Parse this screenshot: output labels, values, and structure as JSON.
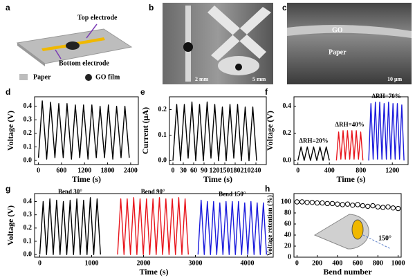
{
  "panels": {
    "a": {
      "label": "a",
      "top_electrode": "Top electrode",
      "bottom_electrode": "Bottom electrode",
      "paper": "Paper",
      "go_film": "GO film"
    },
    "b": {
      "label": "b",
      "scale_left": "2 mm",
      "scale_right": "5 mm"
    },
    "c": {
      "label": "c",
      "go": "GO",
      "paper": "Paper",
      "scale": "10 μm"
    }
  },
  "chart_data": [
    {
      "type": "line",
      "label": "d",
      "xlabel": "Time (s)",
      "ylabel": "Voltage (V)",
      "xlim": [
        -100,
        2600
      ],
      "xticks": [
        0,
        600,
        1200,
        1800,
        2400
      ],
      "ylim": [
        -0.03,
        0.47
      ],
      "yticks": [
        {
          "value": 0,
          "label": "0.0"
        },
        0.1,
        0.2,
        0.3,
        0.4
      ],
      "series": [
        {
          "color": "#000000",
          "x": [
            0,
            100,
            215,
            315,
            430,
            530,
            645,
            745,
            860,
            960,
            1075,
            1175,
            1290,
            1390,
            1505,
            1605,
            1720,
            1820,
            1935,
            2035,
            2150,
            2250,
            2365
          ],
          "values": [
            0.02,
            0.44,
            0.01,
            0.43,
            0.02,
            0.42,
            0.02,
            0.42,
            0.01,
            0.41,
            0.02,
            0.41,
            0.01,
            0.41,
            0.02,
            0.4,
            0.02,
            0.41,
            0.01,
            0.4,
            0.02,
            0.4,
            0.02
          ]
        }
      ]
    },
    {
      "type": "line",
      "label": "e",
      "xlabel": "Time (s)",
      "ylabel": "Current (μA)",
      "xlim": [
        -10,
        270
      ],
      "xticks": [
        0,
        30,
        60,
        90,
        120,
        150,
        180,
        210,
        240
      ],
      "ylim": [
        -0.015,
        0.25
      ],
      "yticks": [
        {
          "value": 0,
          "label": "0.0"
        },
        0.1,
        0.2
      ],
      "series": [
        {
          "color": "#000000",
          "x": [
            0,
            11,
            22,
            33,
            44,
            55,
            66,
            77,
            88,
            99,
            110,
            121,
            132,
            143,
            154,
            165,
            176,
            187,
            198,
            209,
            220,
            231,
            242
          ],
          "values": [
            0.0,
            0.22,
            0.0,
            0.22,
            0.01,
            0.23,
            0.0,
            0.22,
            0.0,
            0.23,
            0.01,
            0.22,
            0.0,
            0.21,
            0.0,
            0.22,
            0.01,
            0.22,
            0.0,
            0.21,
            0.0,
            0.21,
            0.0
          ]
        }
      ]
    },
    {
      "type": "line",
      "label": "f",
      "xlabel": "Time (s)",
      "ylabel": "Voltage (V)",
      "xlim": [
        -50,
        1400
      ],
      "xticks": [
        0,
        400,
        800,
        1200
      ],
      "ylim": [
        -0.03,
        0.47
      ],
      "yticks": [
        {
          "value": 0,
          "label": "0.0"
        },
        0.2,
        0.4
      ],
      "series": [
        {
          "name": "ΔRH=20%",
          "color": "#000000",
          "x": [
            0,
            40,
            80,
            120,
            160,
            200,
            240,
            280,
            320,
            360,
            400
          ],
          "values": [
            0.0,
            0.1,
            0.0,
            0.1,
            0.0,
            0.1,
            0.0,
            0.1,
            0.0,
            0.1,
            0.0
          ]
        },
        {
          "name": "ΔRH=40%",
          "color": "#e8141b",
          "x": [
            490,
            518,
            546,
            574,
            602,
            630,
            658,
            686,
            714,
            742,
            770,
            798,
            826
          ],
          "values": [
            0.0,
            0.21,
            0.01,
            0.22,
            0.01,
            0.22,
            0.01,
            0.22,
            0.01,
            0.22,
            0.01,
            0.21,
            0.0
          ]
        },
        {
          "name": "ΔRH=70%",
          "color": "#1a1adc",
          "x": [
            900,
            928,
            956,
            984,
            1012,
            1040,
            1068,
            1096,
            1124,
            1152,
            1180,
            1208,
            1236,
            1264,
            1292,
            1320,
            1348
          ],
          "values": [
            0.0,
            0.42,
            0.01,
            0.43,
            0.01,
            0.43,
            0.01,
            0.42,
            0.01,
            0.43,
            0.01,
            0.42,
            0.01,
            0.42,
            0.01,
            0.41,
            0.0
          ]
        }
      ]
    },
    {
      "type": "line",
      "label": "g",
      "xlabel": "Time (s)",
      "ylabel": "Voltage (V)",
      "xlim": [
        -100,
        4500
      ],
      "xticks": [
        0,
        1000,
        2000,
        3000,
        4000
      ],
      "ylim": [
        -0.02,
        0.46
      ],
      "yticks": [
        {
          "value": 0,
          "label": "0.0"
        },
        0.1,
        0.2,
        0.3,
        0.4
      ],
      "series": [
        {
          "name": "Bend 30°",
          "color": "#000000",
          "x": [
            0,
            65,
            130,
            195,
            260,
            325,
            390,
            455,
            520,
            585,
            650,
            715,
            780,
            845,
            910,
            975,
            1040,
            1105,
            1170
          ],
          "values": [
            0.0,
            0.4,
            0.0,
            0.42,
            0.0,
            0.41,
            0.0,
            0.4,
            0.0,
            0.41,
            0.0,
            0.42,
            0.0,
            0.41,
            0.0,
            0.43,
            0.0,
            0.42,
            0.0
          ]
        },
        {
          "name": "Bend 90°",
          "color": "#e8141b",
          "x": [
            1500,
            1562,
            1624,
            1686,
            1748,
            1810,
            1872,
            1934,
            1996,
            2058,
            2120,
            2182,
            2244,
            2306,
            2368,
            2430,
            2492,
            2554,
            2616,
            2678,
            2740,
            2802,
            2864
          ],
          "values": [
            0.0,
            0.42,
            0.0,
            0.42,
            0.0,
            0.43,
            0.0,
            0.42,
            0.0,
            0.42,
            0.0,
            0.42,
            0.0,
            0.43,
            0.0,
            0.42,
            0.0,
            0.42,
            0.0,
            0.43,
            0.0,
            0.42,
            0.0
          ]
        },
        {
          "name": "Bend 150°",
          "color": "#1a1adc",
          "x": [
            3050,
            3110,
            3170,
            3230,
            3290,
            3350,
            3410,
            3470,
            3530,
            3590,
            3650,
            3710,
            3770,
            3830,
            3890,
            3950,
            4010,
            4070,
            4130,
            4190,
            4250,
            4310,
            4370
          ],
          "values": [
            0.0,
            0.41,
            0.0,
            0.4,
            0.0,
            0.4,
            0.0,
            0.39,
            0.0,
            0.4,
            0.0,
            0.4,
            0.0,
            0.4,
            0.0,
            0.39,
            0.0,
            0.4,
            0.0,
            0.39,
            0.0,
            0.39,
            0.0
          ]
        }
      ]
    },
    {
      "type": "scatter",
      "label": "h",
      "xlabel": "Bend number",
      "ylabel": "Voltage retention (%)",
      "xlim": [
        -30,
        1030
      ],
      "xticks": [
        0,
        200,
        400,
        600,
        800,
        1000
      ],
      "ylim": [
        0,
        115
      ],
      "yticks": [
        0,
        20,
        40,
        60,
        80,
        100
      ],
      "annotation": "150°",
      "series": [
        {
          "color": "#000000",
          "x": [
            0,
            50,
            100,
            150,
            200,
            250,
            300,
            350,
            400,
            450,
            500,
            550,
            600,
            650,
            700,
            750,
            800,
            850,
            900,
            950,
            1000
          ],
          "values": [
            100,
            100,
            99,
            99,
            98,
            98,
            97,
            97,
            96,
            95,
            96,
            94,
            95,
            93,
            92,
            93,
            91,
            90,
            91,
            89,
            88
          ]
        }
      ]
    }
  ]
}
